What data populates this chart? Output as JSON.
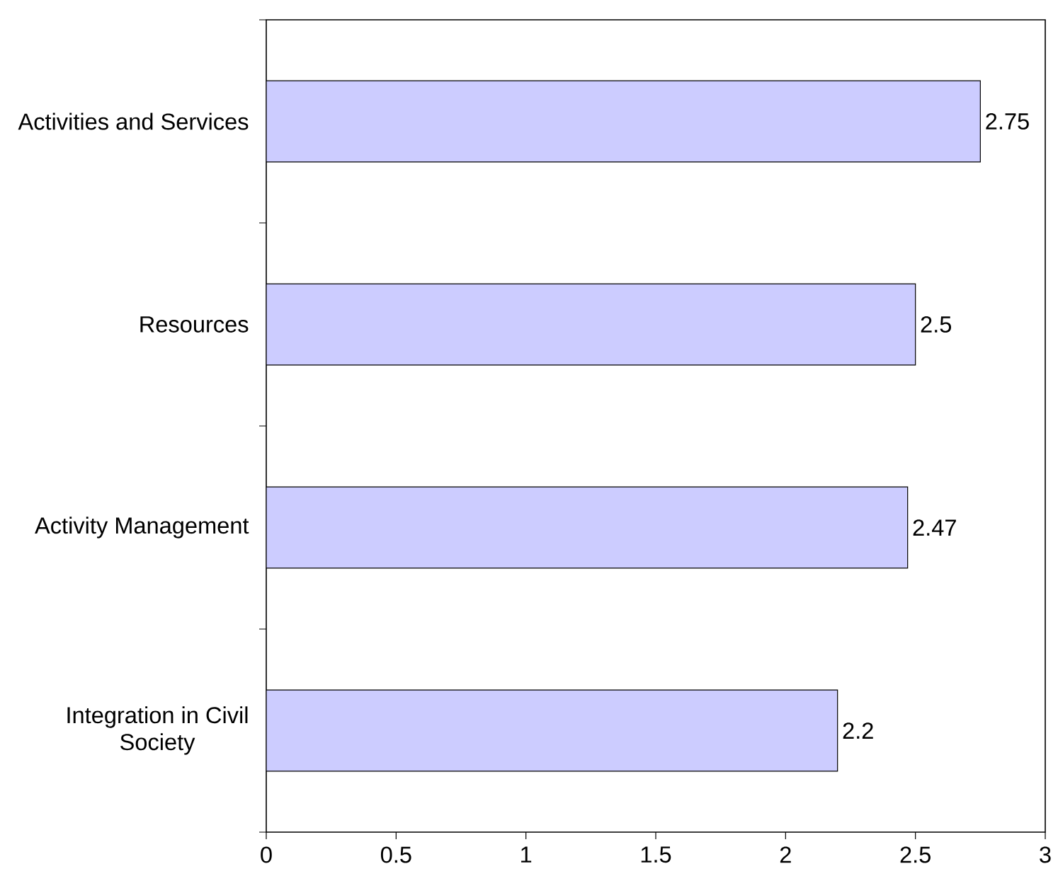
{
  "chart_data": {
    "type": "bar",
    "orientation": "horizontal",
    "categories": [
      "Activities and Services",
      "Resources",
      "Activity Management",
      "Integration in Civil Society"
    ],
    "values": [
      2.75,
      2.5,
      2.47,
      2.2
    ],
    "color": "#ccccff",
    "xlim": [
      0,
      3
    ],
    "xticks": [
      0,
      0.5,
      1,
      1.5,
      2,
      2.5,
      3
    ],
    "data_labels": true
  }
}
